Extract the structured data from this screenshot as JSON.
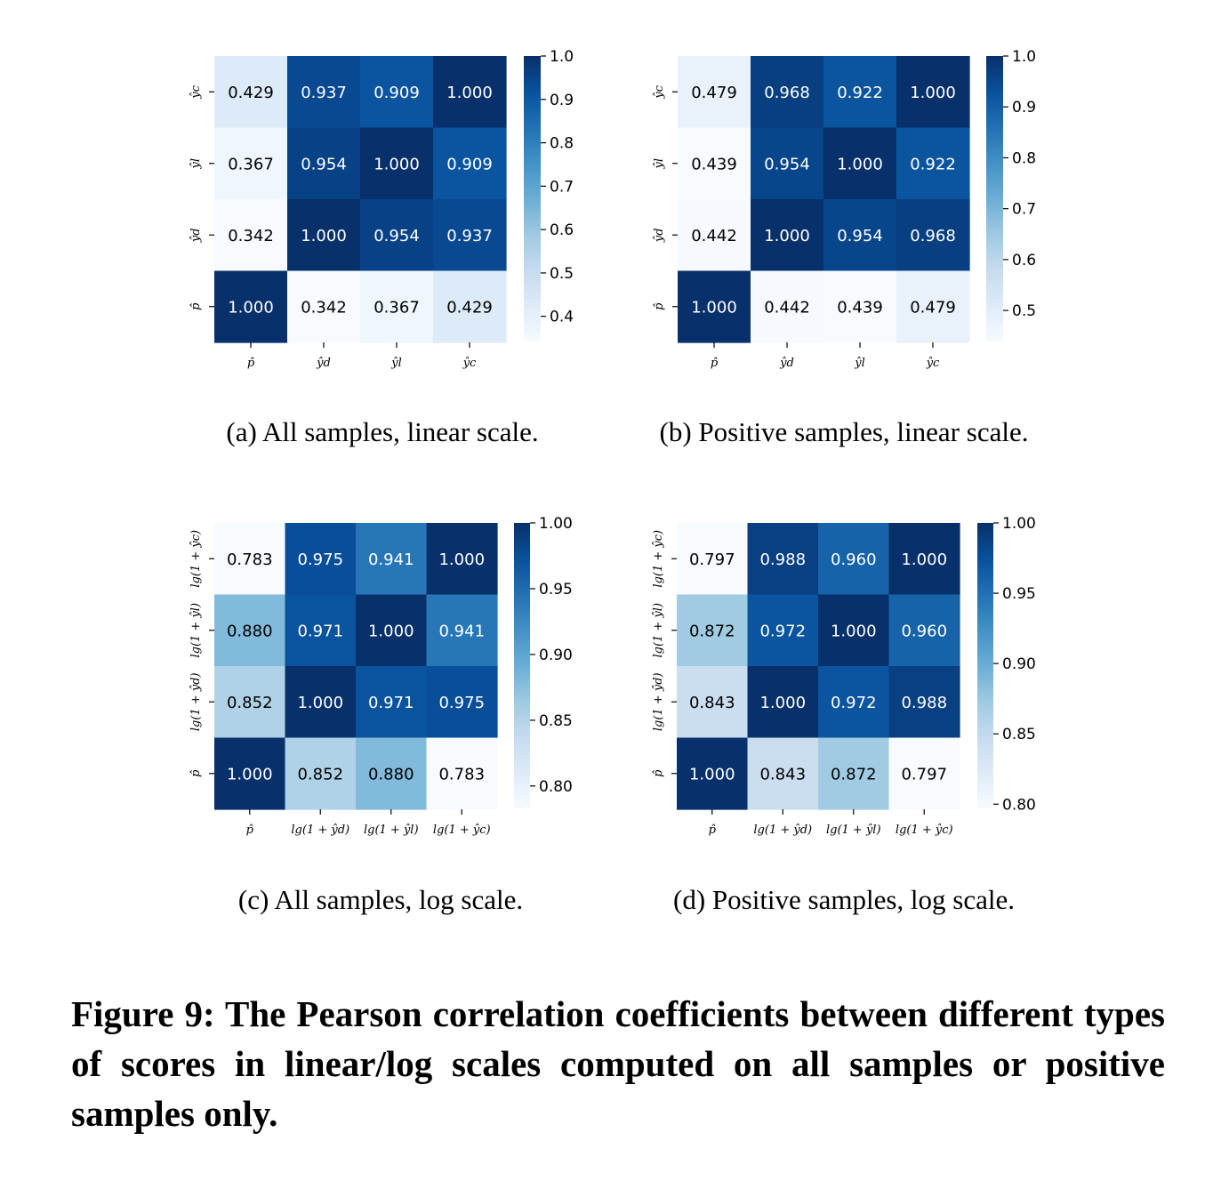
{
  "colors": {
    "low": "#f7fbff",
    "mid": "#6baed6",
    "high": "#08306b"
  },
  "figure_caption": "Figure 9: The Pearson correlation coefficients between different types of scores in linear/log scales computed on all samples or positive samples only.",
  "chart_data": [
    {
      "type": "heatmap",
      "caption": "(a)  All samples, linear scale.",
      "x_labels": [
        "p̂",
        "ŷd",
        "ŷl",
        "ŷc"
      ],
      "y_labels_top_to_bottom": [
        "ŷc",
        "ŷl",
        "ŷd",
        "p̂"
      ],
      "values": [
        [
          0.429,
          0.937,
          0.909,
          1.0
        ],
        [
          0.367,
          0.954,
          1.0,
          0.909
        ],
        [
          0.342,
          1.0,
          0.954,
          0.937
        ],
        [
          1.0,
          0.342,
          0.367,
          0.429
        ]
      ],
      "value_labels": [
        [
          "0.429",
          "0.937",
          "0.909",
          "1.000"
        ],
        [
          "0.367",
          "0.954",
          "1.000",
          "0.909"
        ],
        [
          "0.342",
          "1.000",
          "0.954",
          "0.937"
        ],
        [
          "1.000",
          "0.342",
          "0.367",
          "0.429"
        ]
      ],
      "colorbar": {
        "range": [
          0.342,
          1.0
        ],
        "ticks": [
          1.0,
          0.9,
          0.8,
          0.7,
          0.6,
          0.5,
          0.4
        ],
        "tick_labels": [
          "1.0",
          "0.9",
          "0.8",
          "0.7",
          "0.6",
          "0.5",
          "0.4"
        ]
      }
    },
    {
      "type": "heatmap",
      "caption": "(b)  Positive samples, linear scale.",
      "x_labels": [
        "p̂",
        "ŷd",
        "ŷl",
        "ŷc"
      ],
      "y_labels_top_to_bottom": [
        "ŷc",
        "ŷl",
        "ŷd",
        "p̂"
      ],
      "values": [
        [
          0.479,
          0.968,
          0.922,
          1.0
        ],
        [
          0.439,
          0.954,
          1.0,
          0.922
        ],
        [
          0.442,
          1.0,
          0.954,
          0.968
        ],
        [
          1.0,
          0.442,
          0.439,
          0.479
        ]
      ],
      "value_labels": [
        [
          "0.479",
          "0.968",
          "0.922",
          "1.000"
        ],
        [
          "0.439",
          "0.954",
          "1.000",
          "0.922"
        ],
        [
          "0.442",
          "1.000",
          "0.954",
          "0.968"
        ],
        [
          "1.000",
          "0.442",
          "0.439",
          "0.479"
        ]
      ],
      "colorbar": {
        "range": [
          0.439,
          1.0
        ],
        "ticks": [
          1.0,
          0.9,
          0.8,
          0.7,
          0.6,
          0.5
        ],
        "tick_labels": [
          "1.0",
          "0.9",
          "0.8",
          "0.7",
          "0.6",
          "0.5"
        ]
      }
    },
    {
      "type": "heatmap",
      "caption": "(c)  All samples, log scale.",
      "x_labels": [
        "p̂",
        "lg(1 + ŷd)",
        "lg(1 + ŷl)",
        "lg(1 + ŷc)"
      ],
      "y_labels_top_to_bottom": [
        "lg(1 + ŷc)",
        "lg(1 + ŷl)",
        "lg(1 + ŷd)",
        "p̂"
      ],
      "values": [
        [
          0.783,
          0.975,
          0.941,
          1.0
        ],
        [
          0.88,
          0.971,
          1.0,
          0.941
        ],
        [
          0.852,
          1.0,
          0.971,
          0.975
        ],
        [
          1.0,
          0.852,
          0.88,
          0.783
        ]
      ],
      "value_labels": [
        [
          "0.783",
          "0.975",
          "0.941",
          "1.000"
        ],
        [
          "0.880",
          "0.971",
          "1.000",
          "0.941"
        ],
        [
          "0.852",
          "1.000",
          "0.971",
          "0.975"
        ],
        [
          "1.000",
          "0.852",
          "0.880",
          "0.783"
        ]
      ],
      "colorbar": {
        "range": [
          0.783,
          1.0
        ],
        "ticks": [
          1.0,
          0.95,
          0.9,
          0.85,
          0.8
        ],
        "tick_labels": [
          "1.00",
          "0.95",
          "0.90",
          "0.85",
          "0.80"
        ]
      }
    },
    {
      "type": "heatmap",
      "caption": "(d)  Positive samples, log scale.",
      "x_labels": [
        "p̂",
        "lg(1 + ŷd)",
        "lg(1 + ŷl)",
        "lg(1 + ŷc)"
      ],
      "y_labels_top_to_bottom": [
        "lg(1 + ŷc)",
        "lg(1 + ŷl)",
        "lg(1 + ŷd)",
        "p̂"
      ],
      "values": [
        [
          0.797,
          0.988,
          0.96,
          1.0
        ],
        [
          0.872,
          0.972,
          1.0,
          0.96
        ],
        [
          0.843,
          1.0,
          0.972,
          0.988
        ],
        [
          1.0,
          0.843,
          0.872,
          0.797
        ]
      ],
      "value_labels": [
        [
          "0.797",
          "0.988",
          "0.960",
          "1.000"
        ],
        [
          "0.872",
          "0.972",
          "1.000",
          "0.960"
        ],
        [
          "0.843",
          "1.000",
          "0.972",
          "0.988"
        ],
        [
          "1.000",
          "0.843",
          "0.872",
          "0.797"
        ]
      ],
      "colorbar": {
        "range": [
          0.797,
          1.0
        ],
        "ticks": [
          1.0,
          0.95,
          0.9,
          0.85,
          0.8
        ],
        "tick_labels": [
          "1.00",
          "0.95",
          "0.90",
          "0.85",
          "0.80"
        ]
      }
    }
  ]
}
